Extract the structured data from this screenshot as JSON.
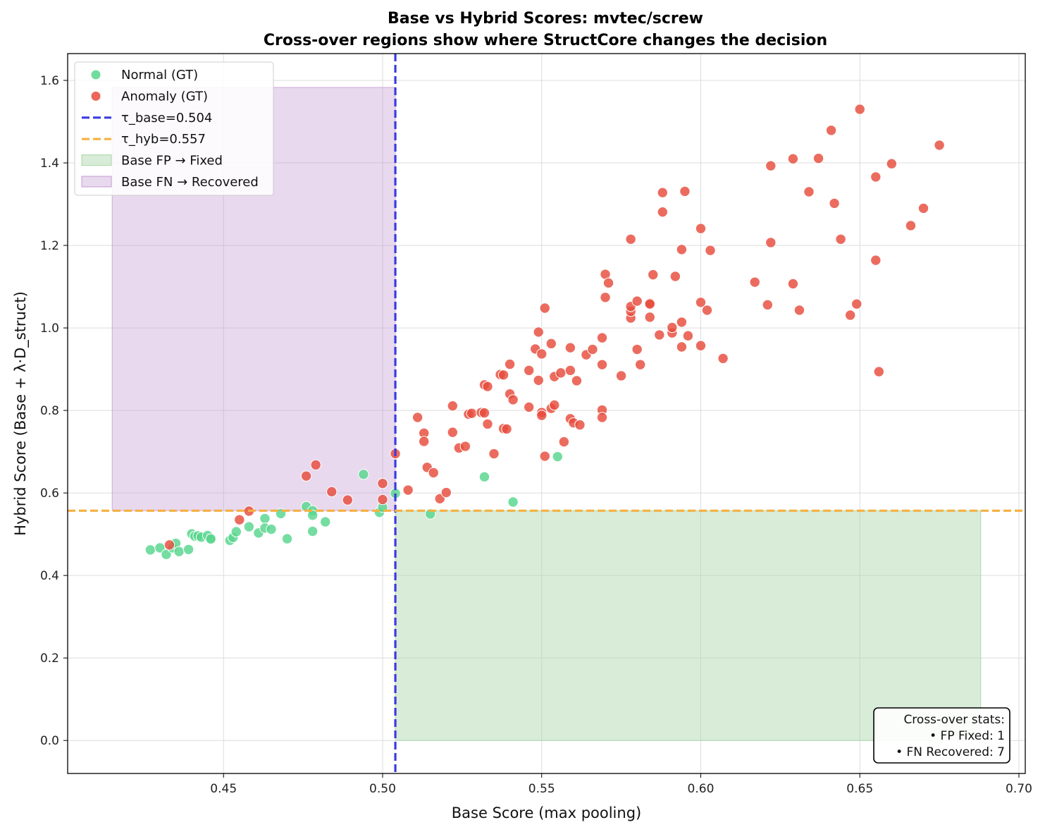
{
  "chart_data": {
    "type": "scatter",
    "title_line1": "Base vs Hybrid Scores: mvtec/screw",
    "title_line2": "Cross-over regions show where StructCore changes the decision",
    "xlabel": "Base Score (max pooling)",
    "ylabel": "Hybrid Score (Base + λ·D_struct)",
    "xlim": [
      0.401,
      0.702
    ],
    "ylim": [
      -0.08,
      1.665
    ],
    "x_ticks": [
      "0.45",
      "0.50",
      "0.55",
      "0.60",
      "0.65",
      "0.70"
    ],
    "x_tick_values": [
      0.45,
      0.5,
      0.55,
      0.6,
      0.65,
      0.7
    ],
    "y_ticks": [
      "0.0",
      "0.2",
      "0.4",
      "0.6",
      "0.8",
      "1.0",
      "1.2",
      "1.4",
      "1.6"
    ],
    "y_tick_values": [
      0.0,
      0.2,
      0.4,
      0.6,
      0.8,
      1.0,
      1.2,
      1.4,
      1.6
    ],
    "grid": true,
    "legend_position": "top-left",
    "colors": {
      "normal": "#58D68D",
      "anomaly": "#E74C3C",
      "tau_base": "#3B3BE0",
      "tau_hyb": "#F5B041",
      "fp_fixed": "#A9D5A9",
      "fn_recovered": "#C39BD3"
    },
    "thresholds": {
      "tau_base": 0.504,
      "tau_hyb": 0.557,
      "tau_base_label": "τ_base=0.504",
      "tau_hyb_label": "τ_hyb=0.557"
    },
    "regions": {
      "fp_fixed": {
        "label": "Base FP → Fixed",
        "x": [
          0.504,
          0.688
        ],
        "y": [
          0.0,
          0.557
        ]
      },
      "fn_recovered": {
        "label": "Base FN → Recovered",
        "x": [
          0.415,
          0.504
        ],
        "y": [
          0.557,
          1.583
        ]
      }
    },
    "series": [
      {
        "name": "Normal (GT)",
        "key": "normal",
        "points": [
          [
            0.427,
            0.462
          ],
          [
            0.43,
            0.467
          ],
          [
            0.432,
            0.451
          ],
          [
            0.434,
            0.467
          ],
          [
            0.435,
            0.478
          ],
          [
            0.436,
            0.458
          ],
          [
            0.439,
            0.463
          ],
          [
            0.44,
            0.501
          ],
          [
            0.441,
            0.495
          ],
          [
            0.442,
            0.496
          ],
          [
            0.443,
            0.493
          ],
          [
            0.445,
            0.497
          ],
          [
            0.446,
            0.487
          ],
          [
            0.446,
            0.489
          ],
          [
            0.452,
            0.485
          ],
          [
            0.453,
            0.492
          ],
          [
            0.454,
            0.506
          ],
          [
            0.458,
            0.518
          ],
          [
            0.461,
            0.503
          ],
          [
            0.463,
            0.538
          ],
          [
            0.463,
            0.515
          ],
          [
            0.465,
            0.512
          ],
          [
            0.468,
            0.55
          ],
          [
            0.47,
            0.489
          ],
          [
            0.476,
            0.567
          ],
          [
            0.478,
            0.557
          ],
          [
            0.478,
            0.546
          ],
          [
            0.478,
            0.507
          ],
          [
            0.482,
            0.53
          ],
          [
            0.494,
            0.645
          ],
          [
            0.499,
            0.553
          ],
          [
            0.5,
            0.565
          ],
          [
            0.504,
            0.599
          ],
          [
            0.515,
            0.549
          ],
          [
            0.532,
            0.639
          ],
          [
            0.541,
            0.578
          ],
          [
            0.555,
            0.688
          ]
        ]
      },
      {
        "name": "Anomaly (GT)",
        "key": "anomaly",
        "points": [
          [
            0.433,
            0.474
          ],
          [
            0.455,
            0.535
          ],
          [
            0.458,
            0.556
          ],
          [
            0.476,
            0.641
          ],
          [
            0.479,
            0.668
          ],
          [
            0.484,
            0.603
          ],
          [
            0.489,
            0.583
          ],
          [
            0.5,
            0.623
          ],
          [
            0.5,
            0.584
          ],
          [
            0.504,
            0.695
          ],
          [
            0.508,
            0.607
          ],
          [
            0.511,
            0.783
          ],
          [
            0.513,
            0.745
          ],
          [
            0.513,
            0.725
          ],
          [
            0.514,
            0.662
          ],
          [
            0.516,
            0.649
          ],
          [
            0.518,
            0.586
          ],
          [
            0.52,
            0.601
          ],
          [
            0.522,
            0.811
          ],
          [
            0.522,
            0.747
          ],
          [
            0.524,
            0.709
          ],
          [
            0.526,
            0.713
          ],
          [
            0.527,
            0.791
          ],
          [
            0.528,
            0.793
          ],
          [
            0.531,
            0.795
          ],
          [
            0.532,
            0.862
          ],
          [
            0.532,
            0.794
          ],
          [
            0.533,
            0.767
          ],
          [
            0.533,
            0.858
          ],
          [
            0.535,
            0.695
          ],
          [
            0.537,
            0.887
          ],
          [
            0.538,
            0.756
          ],
          [
            0.538,
            0.886
          ],
          [
            0.539,
            0.755
          ],
          [
            0.54,
            0.912
          ],
          [
            0.54,
            0.84
          ],
          [
            0.541,
            0.826
          ],
          [
            0.546,
            0.897
          ],
          [
            0.546,
            0.808
          ],
          [
            0.548,
            0.949
          ],
          [
            0.549,
            0.99
          ],
          [
            0.549,
            0.873
          ],
          [
            0.55,
            0.795
          ],
          [
            0.55,
            0.788
          ],
          [
            0.55,
            0.937
          ],
          [
            0.551,
            1.048
          ],
          [
            0.551,
            0.689
          ],
          [
            0.553,
            0.962
          ],
          [
            0.553,
            0.805
          ],
          [
            0.554,
            0.882
          ],
          [
            0.554,
            0.813
          ],
          [
            0.556,
            0.891
          ],
          [
            0.557,
            0.724
          ],
          [
            0.559,
            0.952
          ],
          [
            0.559,
            0.78
          ],
          [
            0.559,
            0.897
          ],
          [
            0.56,
            0.77
          ],
          [
            0.561,
            0.872
          ],
          [
            0.562,
            0.765
          ],
          [
            0.564,
            0.935
          ],
          [
            0.566,
            0.948
          ],
          [
            0.569,
            0.976
          ],
          [
            0.569,
            0.911
          ],
          [
            0.569,
            0.801
          ],
          [
            0.569,
            0.783
          ],
          [
            0.57,
            1.13
          ],
          [
            0.57,
            1.074
          ],
          [
            0.571,
            1.109
          ],
          [
            0.575,
            0.884
          ],
          [
            0.578,
            1.215
          ],
          [
            0.578,
            1.024
          ],
          [
            0.578,
            1.04
          ],
          [
            0.578,
            1.052
          ],
          [
            0.58,
            0.948
          ],
          [
            0.58,
            1.065
          ],
          [
            0.581,
            0.911
          ],
          [
            0.584,
            1.06
          ],
          [
            0.584,
            1.058
          ],
          [
            0.584,
            1.026
          ],
          [
            0.585,
            1.129
          ],
          [
            0.587,
            0.983
          ],
          [
            0.588,
            1.328
          ],
          [
            0.588,
            1.281
          ],
          [
            0.591,
            0.988
          ],
          [
            0.591,
            1.001
          ],
          [
            0.592,
            1.125
          ],
          [
            0.594,
            1.19
          ],
          [
            0.594,
            1.014
          ],
          [
            0.594,
            0.954
          ],
          [
            0.595,
            1.331
          ],
          [
            0.596,
            0.981
          ],
          [
            0.6,
            1.241
          ],
          [
            0.6,
            1.062
          ],
          [
            0.6,
            0.957
          ],
          [
            0.602,
            1.043
          ],
          [
            0.603,
            1.188
          ],
          [
            0.607,
            0.926
          ],
          [
            0.617,
            1.111
          ],
          [
            0.621,
            1.056
          ],
          [
            0.622,
            1.393
          ],
          [
            0.622,
            1.207
          ],
          [
            0.629,
            1.41
          ],
          [
            0.629,
            1.107
          ],
          [
            0.631,
            1.043
          ],
          [
            0.634,
            1.33
          ],
          [
            0.637,
            1.411
          ],
          [
            0.641,
            1.479
          ],
          [
            0.642,
            1.302
          ],
          [
            0.644,
            1.215
          ],
          [
            0.647,
            1.031
          ],
          [
            0.649,
            1.058
          ],
          [
            0.65,
            1.53
          ],
          [
            0.655,
            1.366
          ],
          [
            0.655,
            1.164
          ],
          [
            0.656,
            0.894
          ],
          [
            0.66,
            1.398
          ],
          [
            0.666,
            1.248
          ],
          [
            0.67,
            1.29
          ],
          [
            0.675,
            1.443
          ]
        ]
      }
    ],
    "legend_items": [
      {
        "label": "Normal (GT)",
        "kind": "marker",
        "key": "normal"
      },
      {
        "label": "Anomaly (GT)",
        "kind": "marker",
        "key": "anomaly"
      },
      {
        "label": "τ_base=0.504",
        "kind": "line",
        "key": "tau_base"
      },
      {
        "label": "τ_hyb=0.557",
        "kind": "line",
        "key": "tau_hyb"
      },
      {
        "label": "Base FP → Fixed",
        "kind": "patch",
        "key": "fp_fixed"
      },
      {
        "label": "Base FN → Recovered",
        "kind": "patch",
        "key": "fn_recovered"
      }
    ],
    "stats_box": {
      "position": "bottom-right",
      "lines": [
        "Cross-over stats:",
        "•  FP Fixed: 1",
        "•  FN Recovered: 7"
      ]
    }
  }
}
